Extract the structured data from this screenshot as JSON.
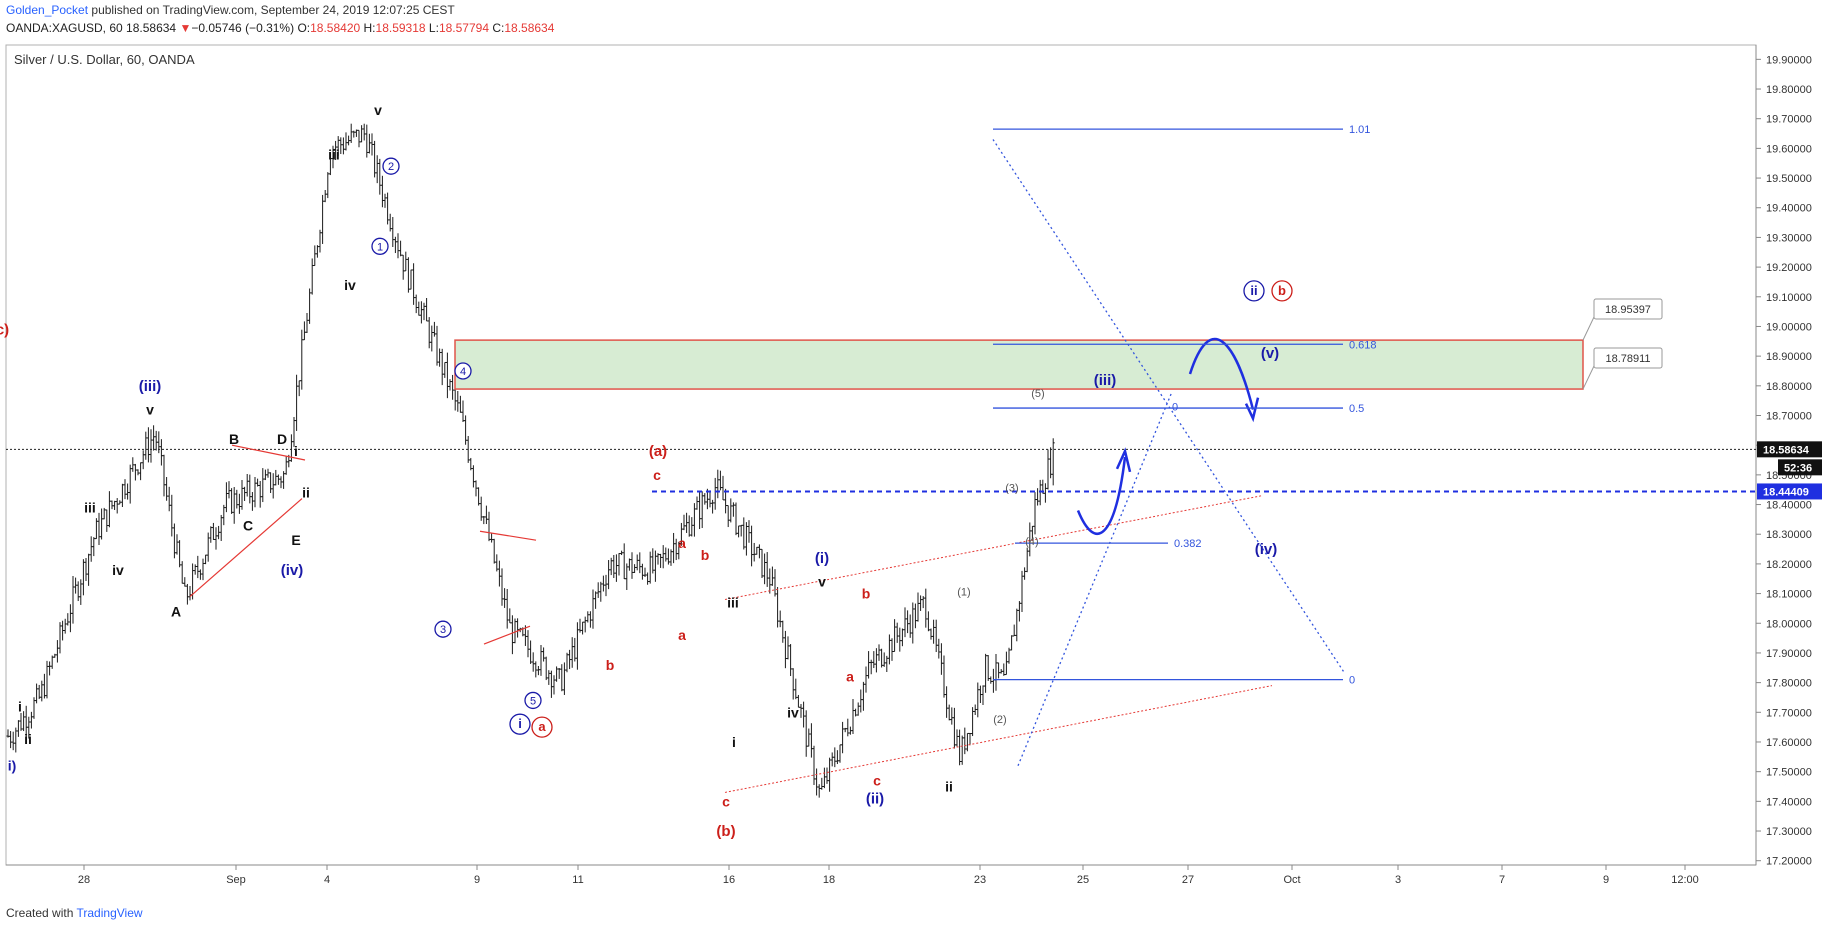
{
  "header": {
    "publisher": "Golden_Pocket",
    "published_text": "published on TradingView.com, September 24, 2019 12:07:25 CEST",
    "symbol": "OANDA:XAGUSD, 60",
    "last": "18.58634",
    "change_arrow": "▼",
    "change": "−0.05746 (−0.31%)",
    "o_label": "O:",
    "o": "18.58420",
    "h_label": "H:",
    "h": "18.59318",
    "l_label": "L:",
    "l": "18.57794",
    "c_label": "C:",
    "c": "18.58634"
  },
  "footer": {
    "created_with": "Created with",
    "brand": "TradingView"
  },
  "colors": {
    "blue": "#1a1aa8",
    "red": "#cc1f1a",
    "fib": "#3355dd",
    "zone_fill": "#d7ecd3",
    "zone_stroke": "#e0554a",
    "bar": "#1a1a1a"
  },
  "chart_data": {
    "type": "candlestick",
    "title": "Silver / U.S. Dollar, 60, OANDA",
    "ylim": [
      17.2,
      19.95
    ],
    "y_ticks": [
      "19.90000",
      "19.80000",
      "19.70000",
      "19.60000",
      "19.50000",
      "19.40000",
      "19.30000",
      "19.20000",
      "19.10000",
      "19.00000",
      "18.90000",
      "18.80000",
      "18.70000",
      "18.60000",
      "18.50000",
      "18.40000",
      "18.30000",
      "18.20000",
      "18.10000",
      "18.00000",
      "17.90000",
      "17.80000",
      "17.70000",
      "17.60000",
      "17.50000",
      "17.40000",
      "17.30000",
      "17.20000"
    ],
    "x_ticks": [
      "28",
      "Sep",
      "4",
      "9",
      "11",
      "16",
      "18",
      "23",
      "25",
      "27",
      "Oct",
      "3",
      "7",
      "9",
      "12:00"
    ],
    "last_price_label": "18.58634",
    "countdown_label": "52:36",
    "support_label": "18.44409",
    "support_level": 18.44409,
    "price_path": [
      {
        "t": "Aug 26",
        "p": 17.62
      },
      {
        "t": "Aug 27",
        "p": 17.75
      },
      {
        "t": "Aug 28",
        "p": 18.3
      },
      {
        "t": "Aug 29",
        "p": 18.64
      },
      {
        "t": "Aug 30",
        "p": 18.08
      },
      {
        "t": "Sep 2",
        "p": 18.4
      },
      {
        "t": "Sep 3",
        "p": 18.5
      },
      {
        "t": "Sep 4",
        "p": 19.6
      },
      {
        "t": "Sep 5",
        "p": 19.65
      },
      {
        "t": "Sep 6",
        "p": 19.2
      },
      {
        "t": "Sep 8",
        "p": 18.7
      },
      {
        "t": "Sep 9",
        "p": 17.98
      },
      {
        "t": "Sep 10",
        "p": 17.8
      },
      {
        "t": "Sep 11",
        "p": 18.2
      },
      {
        "t": "Sep 12",
        "p": 18.18
      },
      {
        "t": "Sep 13",
        "p": 18.46
      },
      {
        "t": "Sep 15",
        "p": 18.15
      },
      {
        "t": "Sep 16",
        "p": 17.42
      },
      {
        "t": "Sep 17",
        "p": 17.85
      },
      {
        "t": "Sep 18",
        "p": 18.07
      },
      {
        "t": "Sep 19",
        "p": 17.55
      },
      {
        "t": "Sep 20",
        "p": 17.85
      },
      {
        "t": "Sep 22",
        "p": 17.8
      },
      {
        "t": "Sep 23",
        "p": 18.4
      },
      {
        "t": "Sep 24",
        "p": 18.586
      }
    ],
    "fib_levels": [
      {
        "label": "1.01",
        "value": 19.665
      },
      {
        "label": "0.618",
        "value": 18.94
      },
      {
        "label": "0.5",
        "value": 18.725
      },
      {
        "label": "0.382",
        "value": 18.27
      },
      {
        "label": "0",
        "value": 17.81
      }
    ],
    "fib_zero_top": {
      "label": "0",
      "value": 18.73
    },
    "zone": {
      "top": 18.95397,
      "bottom": 18.78911,
      "top_label": "18.95397",
      "bottom_label": "18.78911"
    },
    "wave_labels": [
      {
        "t": "i)",
        "p": 17.52,
        "color": "blue"
      },
      {
        "t": "i",
        "p": 17.72,
        "color": "black"
      },
      {
        "t": "ii",
        "p": 17.61,
        "color": "black"
      },
      {
        "t": "iii",
        "p": 18.39,
        "color": "black"
      },
      {
        "t": "iv",
        "p": 18.18,
        "color": "black"
      },
      {
        "t": "(iii)",
        "p": 18.8,
        "color": "blue"
      },
      {
        "t": "v",
        "p": 18.72,
        "color": "black"
      },
      {
        "t": "A",
        "p": 18.04,
        "color": "black"
      },
      {
        "t": "B",
        "p": 18.62,
        "color": "black"
      },
      {
        "t": "C",
        "p": 18.33,
        "color": "black"
      },
      {
        "t": "D",
        "p": 18.62,
        "color": "black"
      },
      {
        "t": "E",
        "p": 18.28,
        "color": "black"
      },
      {
        "t": "(iv)",
        "p": 18.18,
        "color": "blue"
      },
      {
        "t": "i",
        "p": 18.58,
        "color": "black"
      },
      {
        "t": "ii",
        "p": 18.44,
        "color": "black"
      },
      {
        "t": "iii",
        "p": 19.58,
        "color": "black"
      },
      {
        "t": "iv",
        "p": 19.14,
        "color": "black"
      },
      {
        "t": "v",
        "p": 19.73,
        "color": "black"
      },
      {
        "t": "(a)",
        "p": 18.58,
        "color": "red"
      },
      {
        "t": "c",
        "p": 18.5,
        "color": "red"
      },
      {
        "t": "a",
        "p": 18.27,
        "color": "red"
      },
      {
        "t": "b",
        "p": 17.86,
        "color": "red"
      },
      {
        "t": "a",
        "p": 17.96,
        "color": "red"
      },
      {
        "t": "b",
        "p": 18.23,
        "color": "red"
      },
      {
        "t": "iii",
        "p": 18.07,
        "color": "black"
      },
      {
        "t": "(i)",
        "p": 18.22,
        "color": "blue"
      },
      {
        "t": "v",
        "p": 18.14,
        "color": "black"
      },
      {
        "t": "iv",
        "p": 17.7,
        "color": "black"
      },
      {
        "t": "a",
        "p": 17.82,
        "color": "red"
      },
      {
        "t": "b",
        "p": 18.1,
        "color": "red"
      },
      {
        "t": "c",
        "p": 17.47,
        "color": "red"
      },
      {
        "t": "(ii)",
        "p": 17.41,
        "color": "blue"
      },
      {
        "t": "c",
        "p": 17.4,
        "color": "red"
      },
      {
        "t": "(b)",
        "p": 17.3,
        "color": "red"
      },
      {
        "t": "i",
        "p": 17.6,
        "color": "black"
      },
      {
        "t": "ii",
        "p": 17.45,
        "color": "black"
      },
      {
        "t": "(1)",
        "p": 18.11,
        "color": "gray"
      },
      {
        "t": "(2)",
        "p": 17.68,
        "color": "gray"
      },
      {
        "t": "(3)",
        "p": 18.46,
        "color": "gray"
      },
      {
        "t": "(4)",
        "p": 18.28,
        "color": "gray"
      },
      {
        "t": "(5)",
        "p": 18.78,
        "color": "gray"
      },
      {
        "t": "(iii)",
        "p": 18.82,
        "color": "blue"
      },
      {
        "t": "(iv)",
        "p": 18.25,
        "color": "blue"
      },
      {
        "t": "(v)",
        "p": 18.91,
        "color": "blue"
      },
      {
        "t": "(c)",
        "p": 18.99,
        "color": "red"
      }
    ],
    "circled_labels": [
      {
        "t": "1",
        "p": 19.27,
        "color": "blue"
      },
      {
        "t": "2",
        "p": 19.54,
        "color": "blue"
      },
      {
        "t": "3",
        "p": 17.98,
        "color": "blue"
      },
      {
        "t": "4",
        "p": 18.85,
        "color": "blue"
      },
      {
        "t": "5",
        "p": 17.74,
        "color": "blue"
      },
      {
        "t": "i",
        "p": 17.66,
        "color": "blue"
      },
      {
        "t": "a",
        "p": 17.65,
        "color": "red"
      },
      {
        "t": "ii",
        "p": 19.12,
        "color": "blue"
      },
      {
        "t": "b",
        "p": 19.12,
        "color": "red"
      }
    ]
  }
}
